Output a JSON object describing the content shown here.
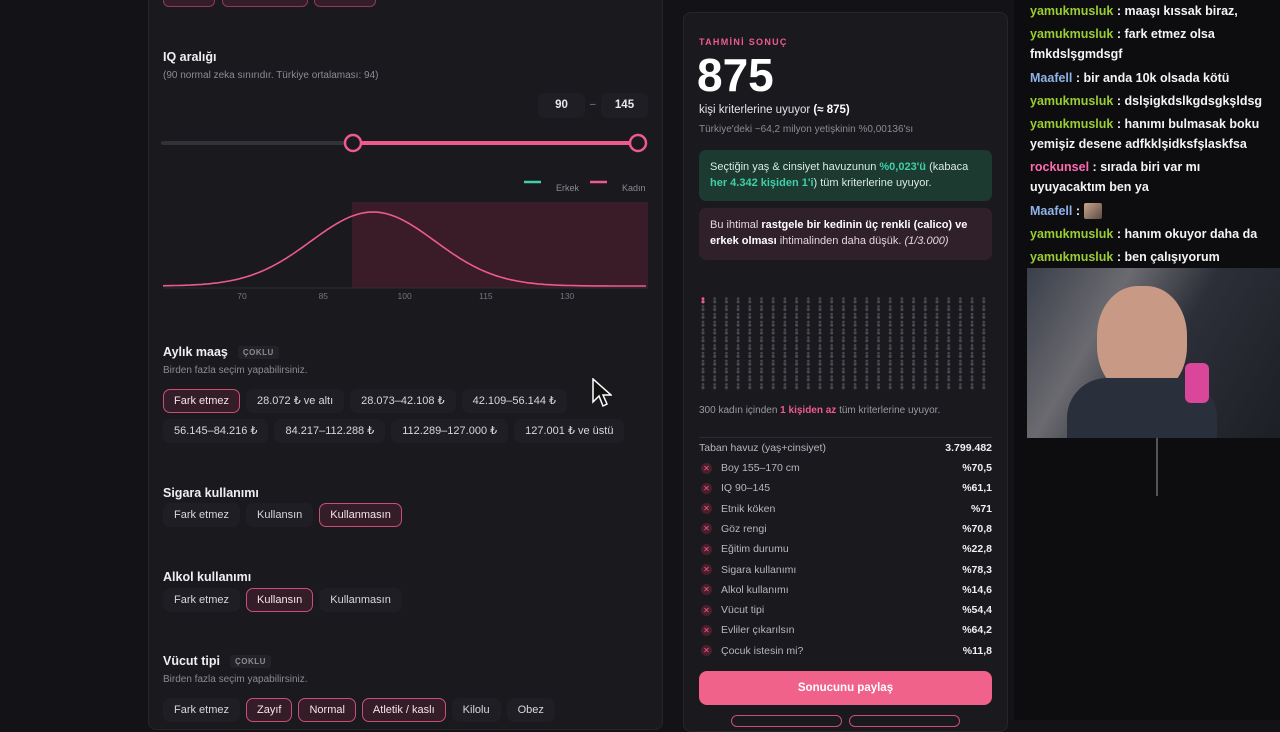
{
  "iq": {
    "title": "IQ aralığı",
    "note": "(90 normal zeka sınırıdır. Türkiye ortalaması: 94)",
    "min": "90",
    "separator": "–",
    "max": "145",
    "legend": [
      {
        "label": "Erkek",
        "color": "#3fd0a8"
      },
      {
        "label": "Kadın",
        "color": "#ee5a8a"
      }
    ],
    "axis_labels": [
      "70",
      "85",
      "100",
      "115",
      "130"
    ]
  },
  "salary": {
    "title": "Aylık maaş",
    "tag": "ÇOKLU",
    "note": "Birden fazla seçim yapabilirsiniz.",
    "options": [
      {
        "label": "Fark etmez",
        "selected": true
      },
      {
        "label": "28.072 ₺ ve altı",
        "selected": false
      },
      {
        "label": "28.073–42.108 ₺",
        "selected": false
      },
      {
        "label": "42.109–56.144 ₺",
        "selected": false
      },
      {
        "label": "56.145–84.216 ₺",
        "selected": false
      },
      {
        "label": "84.217–112.288 ₺",
        "selected": false
      },
      {
        "label": "112.289–127.000 ₺",
        "selected": false
      },
      {
        "label": "127.001 ₺ ve üstü",
        "selected": false
      }
    ]
  },
  "smoking": {
    "title": "Sigara kullanımı",
    "options": [
      {
        "label": "Fark etmez",
        "selected": false
      },
      {
        "label": "Kullansın",
        "selected": false
      },
      {
        "label": "Kullanmasın",
        "selected": true
      }
    ]
  },
  "alcohol": {
    "title": "Alkol kullanımı",
    "options": [
      {
        "label": "Fark etmez",
        "selected": false
      },
      {
        "label": "Kullansın",
        "selected": true
      },
      {
        "label": "Kullanmasın",
        "selected": false
      }
    ]
  },
  "body": {
    "title": "Vücut tipi",
    "tag": "ÇOKLU",
    "note": "Birden fazla seçim yapabilirsiniz.",
    "options": [
      {
        "label": "Fark etmez",
        "selected": false
      },
      {
        "label": "Zayıf",
        "selected": true
      },
      {
        "label": "Normal",
        "selected": true
      },
      {
        "label": "Atletik / kaslı",
        "selected": true
      },
      {
        "label": "Kilolu",
        "selected": false
      },
      {
        "label": "Obez",
        "selected": false
      }
    ]
  },
  "result": {
    "label": "TAHMİNİ SONUÇ",
    "count": "875",
    "subtitle": [
      {
        "text": "kişi kriterlerine uyuyor ",
        "style": "plain"
      },
      {
        "text": "(≈ 875)",
        "style": "bold"
      }
    ],
    "share": "Türkiye'deki ~64,2 milyon yetişkinin %0,00136'sı",
    "green_box": [
      {
        "text": "Seçtiğin yaş & cinsiyet havuzunun ",
        "style": "plain"
      },
      {
        "text": "%0,023'ü",
        "style": "green"
      },
      {
        "text": " (kabaca ",
        "style": "plain"
      },
      {
        "text": "her 4.342 kişiden 1'i",
        "style": "green"
      },
      {
        "text": ") tüm kriterlerine uyuyor.",
        "style": "plain"
      }
    ],
    "red_box": [
      {
        "text": "Bu ihtimal ",
        "style": "plain"
      },
      {
        "text": "rastgele bir kedinin üç renkli (calico) ve erkek olması",
        "style": "bold"
      },
      {
        "text": " ihtimalinden daha düşük. ",
        "style": "plain"
      },
      {
        "text": "(1/3.000)",
        "style": "italic"
      }
    ],
    "grid_caption": [
      {
        "text": "300 kadın içinden ",
        "style": "plain"
      },
      {
        "text": "1 kişiden az",
        "style": "pink"
      },
      {
        "text": " tüm kriterlerine uyuyor.",
        "style": "plain"
      }
    ],
    "breakdown": {
      "header": {
        "label": "Taban havuz (yaş+cinsiyet)",
        "value": "3.799.482"
      },
      "rows": [
        {
          "label": "Boy 155–170 cm",
          "value": "%70,5"
        },
        {
          "label": "IQ 90–145",
          "value": "%61,1"
        },
        {
          "label": "Etnik köken",
          "value": "%71"
        },
        {
          "label": "Göz rengi",
          "value": "%70,8"
        },
        {
          "label": "Eğitim durumu",
          "value": "%22,8"
        },
        {
          "label": "Sigara kullanımı",
          "value": "%78,3"
        },
        {
          "label": "Alkol kullanımı",
          "value": "%14,6"
        },
        {
          "label": "Vücut tipi",
          "value": "%54,4"
        },
        {
          "label": "Evliler çıkarılsın",
          "value": "%64,2"
        },
        {
          "label": "Çocuk istesin mi?",
          "value": "%11,8"
        }
      ]
    },
    "button": "Sonucunu paylaş"
  },
  "chat": {
    "separator": ":",
    "messages": [
      {
        "user": "yamukmusluk",
        "color": "#9acd32",
        "text": "maaşı kıssak biraz,"
      },
      {
        "user": "yamukmusluk",
        "color": "#9acd32",
        "text": "fark etmez olsa fmkdslşgmdsgf"
      },
      {
        "user": "Maafell",
        "color": "#8fb3e8",
        "text": "bir anda 10k olsada kötü"
      },
      {
        "user": "yamukmusluk",
        "color": "#9acd32",
        "text": "dslşigkdslkgdsgkşldsg"
      },
      {
        "user": "yamukmusluk",
        "color": "#9acd32",
        "text": "hanımı bulmasak boku yemişiz desene adfkklşidksfşlaskfsa"
      },
      {
        "user": "rockunsel",
        "color": "#ff6ab0",
        "text": "sırada biri var mı uyuyacaktım ben ya"
      },
      {
        "user": "Maafell",
        "color": "#8fb3e8",
        "emote": true
      },
      {
        "user": "yamukmusluk",
        "color": "#9acd32",
        "text": "hanım okuyor daha da"
      },
      {
        "user": "yamukmusluk",
        "color": "#9acd32",
        "text": "ben çalışıyorum"
      }
    ]
  }
}
